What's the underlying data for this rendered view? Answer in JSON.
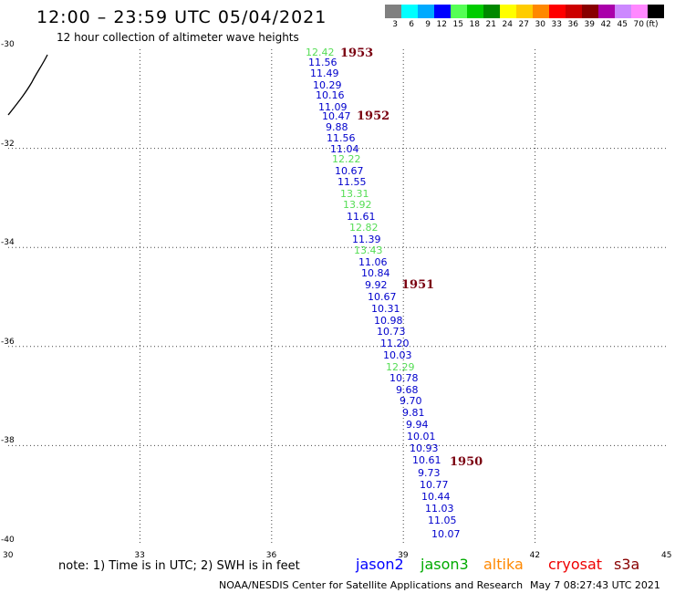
{
  "header": {
    "title": "12:00 – 23:59 UTC 05/04/2021",
    "subtitle": "12 hour collection of altimeter wave heights"
  },
  "legend": {
    "unit": "(ft)",
    "bins": [
      {
        "label": "3",
        "color": "#808080"
      },
      {
        "label": "6",
        "color": "#00ffff"
      },
      {
        "label": "9",
        "color": "#00aaff"
      },
      {
        "label": "12",
        "color": "#0000ff"
      },
      {
        "label": "15",
        "color": "#55ff55"
      },
      {
        "label": "18",
        "color": "#00cc00"
      },
      {
        "label": "21",
        "color": "#008800"
      },
      {
        "label": "24",
        "color": "#ffff00"
      },
      {
        "label": "27",
        "color": "#ffcc00"
      },
      {
        "label": "30",
        "color": "#ff8800"
      },
      {
        "label": "33",
        "color": "#ff0000"
      },
      {
        "label": "36",
        "color": "#cc0000"
      },
      {
        "label": "39",
        "color": "#880000"
      },
      {
        "label": "42",
        "color": "#aa00aa"
      },
      {
        "label": "45",
        "color": "#cc88ff"
      },
      {
        "label": "70",
        "color": "#ff88ff"
      },
      {
        "label": "",
        "color": "#000000"
      }
    ]
  },
  "axes": {
    "lat_labels": [
      "-30",
      "-32",
      "-34",
      "-36",
      "-38",
      "-40"
    ],
    "lon_labels": [
      "30",
      "33",
      "36",
      "39",
      "42",
      "45"
    ],
    "lat_range": [
      -40,
      -30
    ],
    "lon_range": [
      30,
      45
    ]
  },
  "observations": [
    {
      "v": "12.42",
      "c": "#55dd55"
    },
    {
      "v": "11.56",
      "c": "#0000cc"
    },
    {
      "v": "11.49",
      "c": "#0000cc"
    },
    {
      "v": "10.29",
      "c": "#0000cc"
    },
    {
      "v": "10.16",
      "c": "#0000cc"
    },
    {
      "v": "11.09",
      "c": "#0000cc"
    },
    {
      "v": "10.47",
      "c": "#0000cc"
    },
    {
      "v": "9.88",
      "c": "#0000cc"
    },
    {
      "v": "11.56",
      "c": "#0000cc"
    },
    {
      "v": "11.04",
      "c": "#0000cc"
    },
    {
      "v": "12.22",
      "c": "#55dd55"
    },
    {
      "v": "10.67",
      "c": "#0000cc"
    },
    {
      "v": "11.55",
      "c": "#0000cc"
    },
    {
      "v": "13.31",
      "c": "#55dd55"
    },
    {
      "v": "13.92",
      "c": "#55dd55"
    },
    {
      "v": "11.61",
      "c": "#0000cc"
    },
    {
      "v": "12.82",
      "c": "#55dd55"
    },
    {
      "v": "11.39",
      "c": "#0000cc"
    },
    {
      "v": "13.43",
      "c": "#55dd55"
    },
    {
      "v": "11.06",
      "c": "#0000cc"
    },
    {
      "v": "10.84",
      "c": "#0000cc"
    },
    {
      "v": "9.92",
      "c": "#0000cc"
    },
    {
      "v": "10.67",
      "c": "#0000cc"
    },
    {
      "v": "10.31",
      "c": "#0000cc"
    },
    {
      "v": "10.98",
      "c": "#0000cc"
    },
    {
      "v": "10.73",
      "c": "#0000cc"
    },
    {
      "v": "11.20",
      "c": "#0000cc"
    },
    {
      "v": "10.03",
      "c": "#0000cc"
    },
    {
      "v": "12.29",
      "c": "#55dd55"
    },
    {
      "v": "10.78",
      "c": "#0000cc"
    },
    {
      "v": "9.68",
      "c": "#0000cc"
    },
    {
      "v": "9.70",
      "c": "#0000cc"
    },
    {
      "v": "9.81",
      "c": "#0000cc"
    },
    {
      "v": "9.94",
      "c": "#0000cc"
    },
    {
      "v": "10.01",
      "c": "#0000cc"
    },
    {
      "v": "10.93",
      "c": "#0000cc"
    },
    {
      "v": "10.61",
      "c": "#0000cc"
    },
    {
      "v": "9.73",
      "c": "#0000cc"
    },
    {
      "v": "10.77",
      "c": "#0000cc"
    },
    {
      "v": "10.44",
      "c": "#0000cc"
    },
    {
      "v": "11.03",
      "c": "#0000cc"
    },
    {
      "v": "11.05",
      "c": "#0000cc"
    },
    {
      "v": "10.07",
      "c": "#0000cc"
    }
  ],
  "passes": [
    {
      "label": "1953"
    },
    {
      "label": "1952"
    },
    {
      "label": "1951"
    },
    {
      "label": "1950"
    }
  ],
  "footer": {
    "note": "note:  1) Time is in UTC;  2) SWH is in feet",
    "satellites": [
      {
        "name": "jason2",
        "color": "#0000ff"
      },
      {
        "name": "jason3",
        "color": "#00aa00"
      },
      {
        "name": "altika",
        "color": "#ff8800"
      },
      {
        "name": "cryosat",
        "color": "#ee0000"
      },
      {
        "name": "s3a",
        "color": "#880000"
      }
    ],
    "credit": "NOAA/NESDIS Center for Satellite Applications and Research",
    "date": "May  7 08:27:43 UTC 2021"
  }
}
